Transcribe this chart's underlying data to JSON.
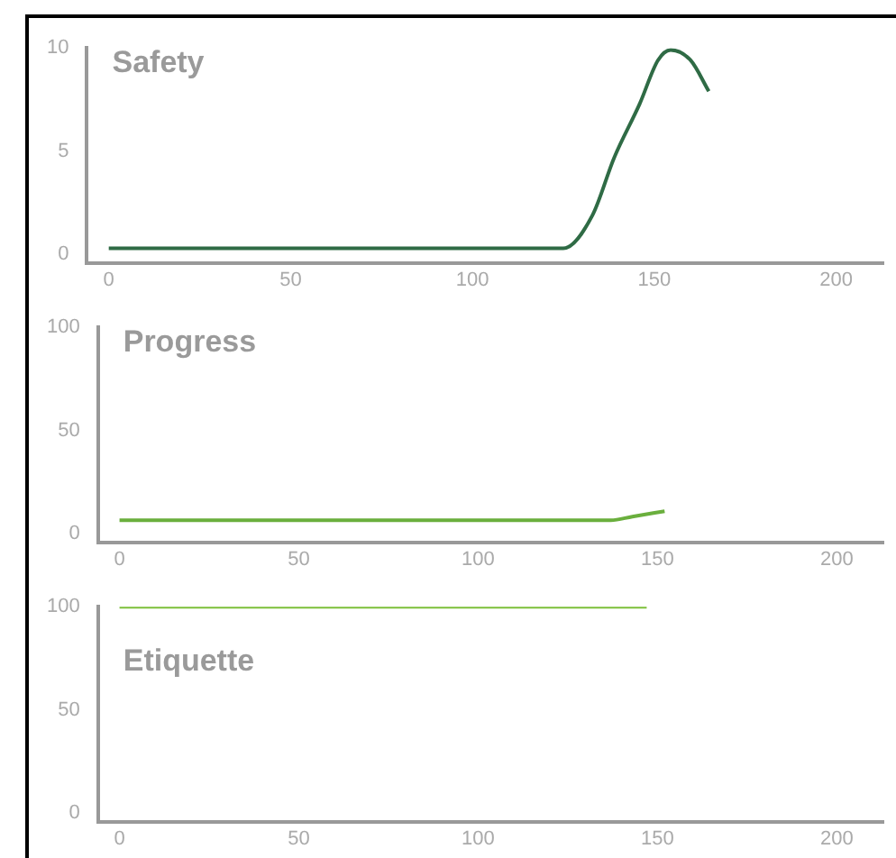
{
  "chart_data": [
    {
      "type": "line",
      "title": "Safety",
      "series": [
        {
          "color": "#2f6b45",
          "x": [
            0,
            125,
            133,
            139,
            146,
            151,
            154.5,
            160,
            165
          ],
          "values": [
            0.3,
            0.3,
            1.9,
            4.7,
            7.3,
            9.4,
            9.9,
            9.4,
            7.9
          ]
        }
      ],
      "xlim": [
        -6,
        213
      ],
      "xticks": [
        0,
        50,
        100,
        150,
        200
      ],
      "ylim": [
        -0.4,
        10
      ],
      "yticks": [
        0,
        5,
        10
      ],
      "grid": false,
      "legend": false,
      "marker": "none"
    },
    {
      "type": "line",
      "title": "Progress",
      "series": [
        {
          "color": "#6aaf3d",
          "x": [
            0,
            137,
            143,
            152
          ],
          "values": [
            6.6,
            6.6,
            8.4,
            11
          ]
        }
      ],
      "xlim": [
        -6,
        213
      ],
      "xticks": [
        0,
        50,
        100,
        150,
        200
      ],
      "ylim": [
        -4,
        100
      ],
      "yticks": [
        0,
        50,
        100
      ],
      "grid": false,
      "legend": false,
      "marker": "none"
    },
    {
      "type": "line",
      "title": "Etiquette",
      "series": [
        {
          "color": "#7cbf3a",
          "x": [
            0,
            147
          ],
          "values": [
            100,
            100
          ]
        }
      ],
      "xlim": [
        -6,
        213
      ],
      "xticks": [
        0,
        50,
        100,
        150,
        200
      ],
      "ylim": [
        -4,
        100
      ],
      "yticks": [
        0,
        50,
        100
      ],
      "grid": false,
      "legend": false,
      "marker": "none"
    }
  ]
}
